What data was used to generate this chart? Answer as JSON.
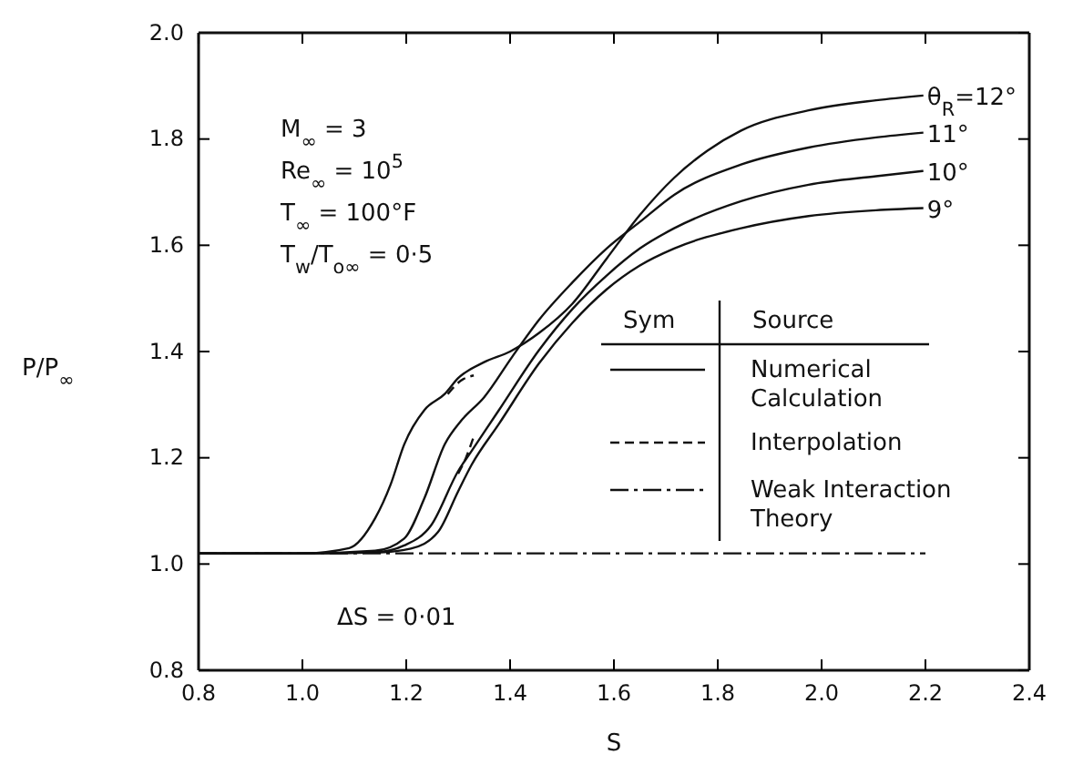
{
  "chart_data": {
    "type": "line",
    "xlabel": "S",
    "ylabel": "P/P$_{∞}$",
    "xlim": [
      0.8,
      2.4
    ],
    "ylim": [
      0.8,
      2.0
    ],
    "xticks": [
      {
        "value": 0.8,
        "label": "0.8"
      },
      {
        "value": 1.0,
        "label": "1.0"
      },
      {
        "value": 1.2,
        "label": "1.2"
      },
      {
        "value": 1.4,
        "label": "1.4"
      },
      {
        "value": 1.6,
        "label": "1.6"
      },
      {
        "value": 1.8,
        "label": "1.8"
      },
      {
        "value": 2.0,
        "label": "2.0"
      },
      {
        "value": 2.2,
        "label": "2.2"
      },
      {
        "value": 2.4,
        "label": "2.4"
      }
    ],
    "yticks": [
      {
        "value": 0.8,
        "label": "0.8"
      },
      {
        "value": 1.0,
        "label": "1.0"
      },
      {
        "value": 1.2,
        "label": "1.2"
      },
      {
        "value": 1.4,
        "label": "1.4"
      },
      {
        "value": 1.6,
        "label": "1.6"
      },
      {
        "value": 1.8,
        "label": "1.8"
      },
      {
        "value": 2.0,
        "label": "2.0"
      }
    ],
    "grid": false,
    "legend": "right",
    "marker": "none",
    "series": [
      {
        "name": "θ$_{R}$=12°",
        "color": "#111111",
        "line_style": "solid",
        "x": [
          0.8,
          1.0,
          1.09,
          1.14,
          1.17,
          1.196,
          1.235,
          1.274,
          1.3,
          1.35,
          1.4,
          1.456,
          1.52,
          1.586,
          1.65,
          1.716,
          1.78,
          1.845,
          1.975,
          2.105,
          2.196
        ],
        "values": [
          1.02,
          1.02,
          1.03,
          1.086,
          1.15,
          1.225,
          1.29,
          1.32,
          1.35,
          1.38,
          1.4,
          1.435,
          1.49,
          1.575,
          1.657,
          1.727,
          1.778,
          1.816,
          1.854,
          1.873,
          1.882
        ]
      },
      {
        "name": "11°",
        "color": "#111111",
        "line_style": "solid",
        "x": [
          0.8,
          1.0,
          1.14,
          1.196,
          1.235,
          1.274,
          1.306,
          1.35,
          1.404,
          1.456,
          1.52,
          1.586,
          1.65,
          1.716,
          1.845,
          1.975,
          2.105,
          2.196
        ],
        "values": [
          1.02,
          1.02,
          1.025,
          1.048,
          1.124,
          1.225,
          1.27,
          1.314,
          1.39,
          1.46,
          1.53,
          1.594,
          1.644,
          1.695,
          1.752,
          1.784,
          1.803,
          1.812
        ]
      },
      {
        "name": "10°",
        "color": "#111111",
        "line_style": "solid",
        "x": [
          0.8,
          1.0,
          1.14,
          1.196,
          1.248,
          1.3,
          1.326,
          1.378,
          1.456,
          1.52,
          1.586,
          1.65,
          1.716,
          1.845,
          1.975,
          2.105,
          2.196
        ],
        "values": [
          1.02,
          1.02,
          1.022,
          1.035,
          1.073,
          1.175,
          1.213,
          1.289,
          1.403,
          1.48,
          1.543,
          1.594,
          1.632,
          1.683,
          1.714,
          1.73,
          1.74
        ]
      },
      {
        "name": "9°",
        "color": "#111111",
        "line_style": "solid",
        "x": [
          0.8,
          1.0,
          1.15,
          1.209,
          1.261,
          1.3,
          1.326,
          1.378,
          1.456,
          1.52,
          1.586,
          1.65,
          1.716,
          1.845,
          1.975,
          2.105,
          2.196
        ],
        "values": [
          1.02,
          1.02,
          1.022,
          1.029,
          1.06,
          1.137,
          1.187,
          1.263,
          1.378,
          1.454,
          1.517,
          1.562,
          1.594,
          1.632,
          1.655,
          1.666,
          1.67
        ]
      },
      {
        "name": "Interpolation",
        "color": "#111111",
        "line_style": "dashed",
        "x": [
          1.28,
          1.305,
          1.33,
          null,
          1.3,
          1.315,
          1.33
        ],
        "values": [
          1.32,
          1.345,
          1.355,
          null,
          1.17,
          1.2,
          1.24
        ]
      },
      {
        "name": "Weak Interaction Theory",
        "color": "#111111",
        "line_style": "dashdot",
        "x": [
          0.8,
          2.2
        ],
        "values": [
          1.02,
          1.02
        ]
      }
    ],
    "annotations": [
      "M$_{∞}$ = 3",
      "Re$_{∞}$ = 10$^{5}$",
      "T$_{∞}$ = 100°F",
      "T$_{w}$/T$_{o∞}$ = 0·5",
      "ΔS = 0·01",
      "Sym",
      "Source",
      "Numerical Calculation"
    ]
  }
}
